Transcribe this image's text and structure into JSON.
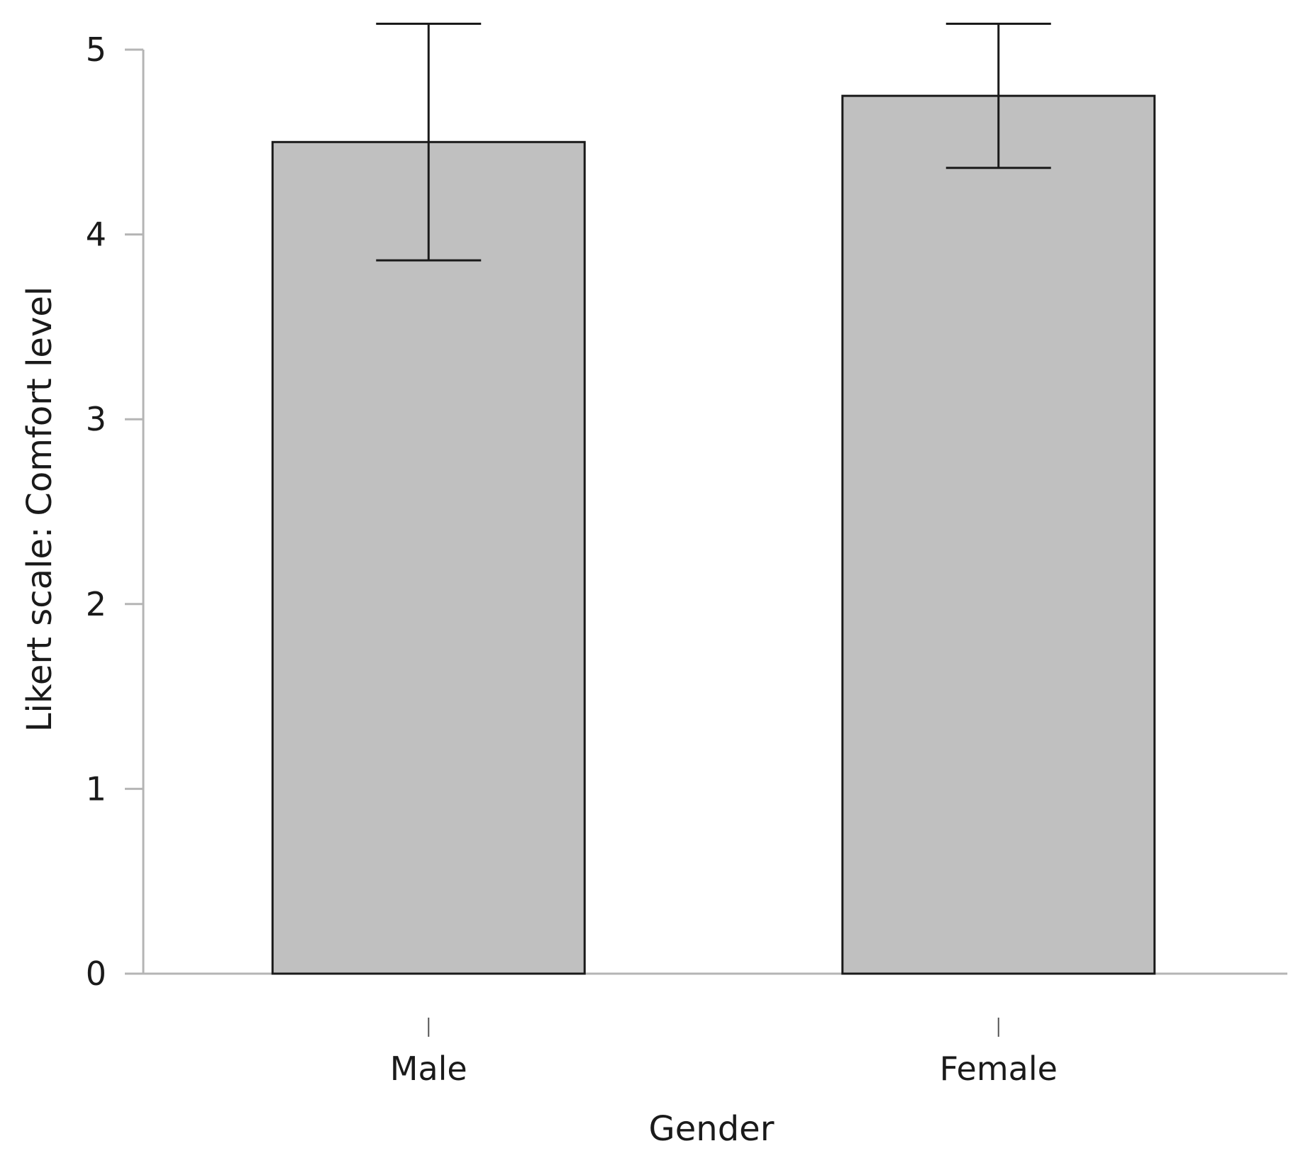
{
  "chart_data": {
    "type": "bar",
    "title": "",
    "xlabel": "Gender",
    "ylabel": "Likert scale: Comfort level",
    "categories": [
      "Male",
      "Female"
    ],
    "values": [
      4.5,
      4.75
    ],
    "error_bars": [
      {
        "lower": 3.86,
        "upper": 5.14
      },
      {
        "lower": 4.36,
        "upper": 5.14
      }
    ],
    "ylim": [
      0,
      5
    ],
    "yticks": [
      "0",
      "1",
      "2",
      "3",
      "4",
      "5"
    ],
    "grid": false,
    "legend": "none",
    "bar_color": "#c0c0c0",
    "bar_edge_color": "#1a1a1a",
    "axis_color": "#b5b5b5"
  }
}
